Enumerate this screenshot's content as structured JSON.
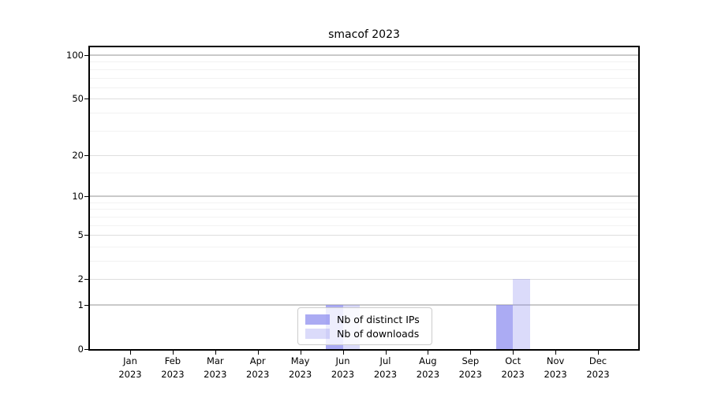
{
  "title": "smacof 2023",
  "chart_data": {
    "type": "bar",
    "title": "smacof 2023",
    "xlabel": "",
    "ylabel": "",
    "grid": true,
    "categories": [
      "Jan",
      "Feb",
      "Mar",
      "Apr",
      "May",
      "Jun",
      "Jul",
      "Aug",
      "Sep",
      "Oct",
      "Nov",
      "Dec"
    ],
    "year_label": "2023",
    "series": [
      {
        "name": "Nb of distinct IPs",
        "color": "#8888ee",
        "alpha": 0.7,
        "values": [
          0,
          0,
          0,
          0,
          0,
          1,
          0,
          0,
          0,
          1,
          0,
          0
        ]
      },
      {
        "name": "Nb of downloads",
        "color": "#8888ee",
        "alpha": 0.3,
        "values": [
          0,
          0,
          0,
          0,
          0,
          1,
          0,
          0,
          0,
          2,
          0,
          0
        ]
      }
    ],
    "y_axis": {
      "scale": "log1p",
      "ticks": [
        0,
        1,
        2,
        5,
        10,
        20,
        50,
        100
      ],
      "decade_ticks": [
        1,
        10,
        100
      ],
      "minor_gridlines": [
        3,
        4,
        6,
        7,
        8,
        9,
        15,
        30,
        40,
        60,
        70,
        80,
        90
      ],
      "ylim": [
        0,
        113
      ]
    },
    "legend": {
      "position": "lower center",
      "entries": [
        "Nb of distinct IPs",
        "Nb of downloads"
      ]
    }
  },
  "colors": {
    "bar_base": "#8888ee",
    "grid_decade": "#c9c9c9",
    "grid_sub": "#dedede",
    "grid_minor": "#f2f2f2",
    "spine": "#000000",
    "background": "#ffffff"
  }
}
